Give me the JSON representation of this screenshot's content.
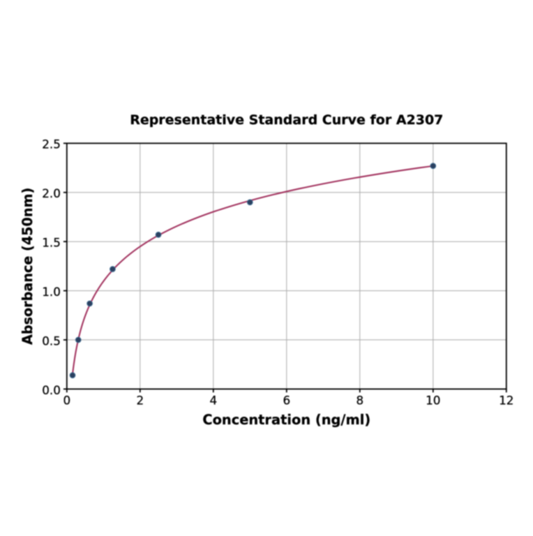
{
  "figure": {
    "background": "#ffffff"
  },
  "chart_data": {
    "type": "scatter",
    "title": "Representative Standard Curve for A2307",
    "xlabel": "Concentration (ng/ml)",
    "ylabel": "Absorbance (450nm)",
    "x": [
      0.156,
      0.3125,
      0.625,
      1.25,
      2.5,
      5,
      10
    ],
    "y": [
      0.14,
      0.5,
      0.87,
      1.22,
      1.57,
      1.9,
      2.27
    ],
    "xlim": [
      0,
      12
    ],
    "ylim": [
      0,
      2.5
    ],
    "xticks": [
      0,
      2,
      4,
      6,
      8,
      10,
      12
    ],
    "yticks": [
      0,
      0.5,
      1,
      1.5,
      2,
      2.5
    ],
    "xtick_labels": [
      "0",
      "2",
      "4",
      "6",
      "8",
      "10",
      "12"
    ],
    "ytick_labels": [
      "0.0",
      "0.5",
      "1.0",
      "1.5",
      "2.0",
      "2.5"
    ],
    "grid": true,
    "legend": "none",
    "fit_curve": {
      "type": "logarithmic",
      "formula": "y = a + b*ln(x)",
      "a": 1.0963,
      "b": 0.5096,
      "x_start": 0.156,
      "x_end": 10
    },
    "colors": {
      "curve": "#a2325e",
      "marker": "#2c405f",
      "marker_edge": "#34638b",
      "grid": "#b0b0b0",
      "axis": "#000000",
      "text": "#000000"
    }
  }
}
